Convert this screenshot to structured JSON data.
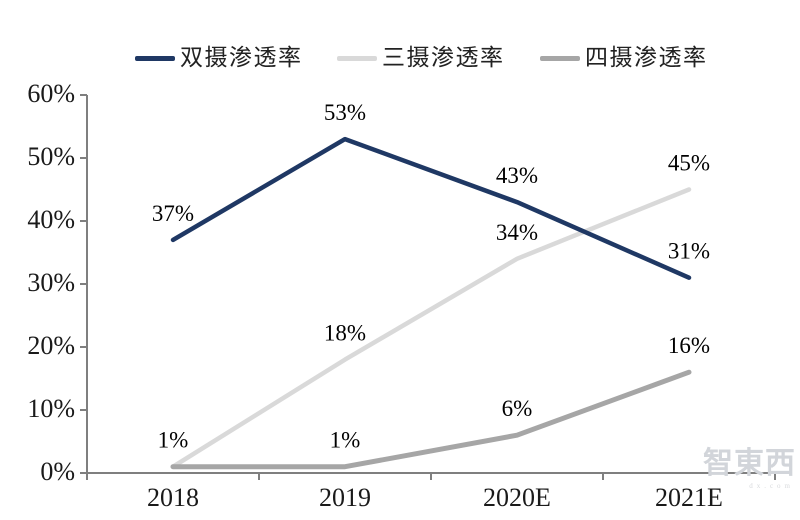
{
  "chart_data": {
    "type": "line",
    "categories": [
      "2018",
      "2019",
      "2020E",
      "2021E"
    ],
    "series": [
      {
        "name": "双摄渗透率",
        "color": "#1f3864",
        "stroke_width": 4.5,
        "values": [
          37,
          53,
          43,
          31
        ],
        "labels": [
          "37%",
          "53%",
          "43%",
          "31%"
        ]
      },
      {
        "name": "三摄渗透率",
        "color": "#d9d9d9",
        "stroke_width": 4.5,
        "values": [
          1,
          18,
          34,
          45
        ],
        "labels": [
          null,
          "18%",
          "34%",
          "45%"
        ]
      },
      {
        "name": "四摄渗透率",
        "color": "#a6a6a6",
        "stroke_width": 5,
        "values": [
          1,
          1,
          6,
          16
        ],
        "labels": [
          "1%",
          "1%",
          "6%",
          "16%"
        ]
      }
    ],
    "ylim": [
      0,
      60
    ],
    "ytick_step": 10,
    "ytick_labels": [
      "0%",
      "10%",
      "20%",
      "30%",
      "40%",
      "50%",
      "60%"
    ],
    "grid": false,
    "legend_position": "top",
    "axis_color": "#7f7f7f",
    "text_color": "#1a1a1a",
    "draw_order": [
      1,
      2,
      0
    ]
  },
  "watermark": {
    "text": "智東西",
    "subtext": "dx.com"
  }
}
